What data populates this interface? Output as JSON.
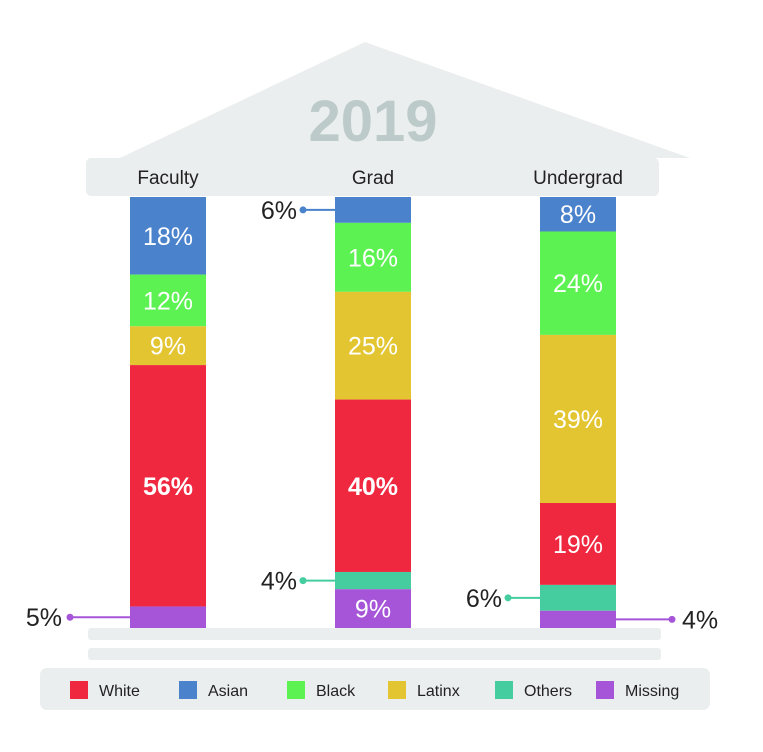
{
  "chart_data": {
    "type": "bar",
    "stacked": true,
    "title": "2019",
    "categories": [
      "Faculty",
      "Grad",
      "Undergrad"
    ],
    "series": [
      {
        "name": "White",
        "color": "#ef2840",
        "values": [
          56,
          40,
          19
        ]
      },
      {
        "name": "Asian",
        "color": "#4a82cc",
        "values": [
          18,
          6,
          8
        ]
      },
      {
        "name": "Black",
        "color": "#5cf252",
        "values": [
          12,
          16,
          24
        ]
      },
      {
        "name": "Latinx",
        "color": "#e3c532",
        "values": [
          9,
          25,
          39
        ]
      },
      {
        "name": "Others",
        "color": "#45cd9f",
        "values": [
          0,
          4,
          6
        ]
      },
      {
        "name": "Missing",
        "color": "#a655d8",
        "values": [
          5,
          9,
          4
        ]
      }
    ],
    "stack_order_top_to_bottom": [
      "Asian",
      "Black",
      "Latinx",
      "White",
      "Others",
      "Missing"
    ],
    "labels": {
      "Faculty": {
        "Asian": "18%",
        "Black": "12%",
        "Latinx": "9%",
        "White": "56%",
        "Missing": "5%"
      },
      "Grad": {
        "Asian": "6%",
        "Black": "16%",
        "Latinx": "25%",
        "White": "40%",
        "Others": "4%",
        "Missing": "9%"
      },
      "Undergrad": {
        "Asian": "8%",
        "Black": "24%",
        "Latinx": "39%",
        "White": "19%",
        "Others": "6%",
        "Missing": "4%"
      }
    },
    "legend_position": "bottom",
    "grid": false
  },
  "colors": {
    "roof": "#ebeeee",
    "title": "#bccaca",
    "cap": "#ebeeee",
    "base": "#ebeeee",
    "legend_bg": "#ebeeee"
  }
}
